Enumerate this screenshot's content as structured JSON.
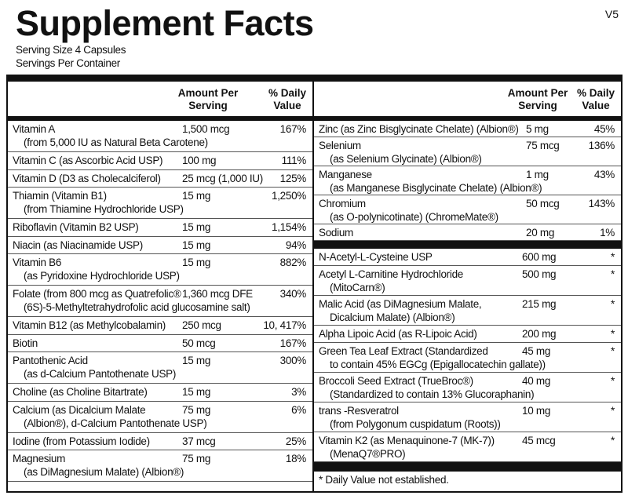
{
  "title": "Supplement Facts",
  "version": "V5",
  "serving_size": "Serving Size  4 Capsules",
  "servings_per_container": "Servings Per Container",
  "header": {
    "amount": "Amount Per",
    "amount2": "Serving",
    "dv": "% Daily",
    "dv2": "Value"
  },
  "left_rows": [
    {
      "name": "Vitamin A",
      "sub": "(from 5,000 IU as Natural Beta Carotene)",
      "amount": "1,500 mcg",
      "dv": "167%"
    },
    {
      "name": "Vitamin C (as Ascorbic Acid USP)",
      "amount": "100 mg",
      "dv": "111%"
    },
    {
      "name": "Vitamin D (D3 as Cholecalciferol)",
      "amount": "25 mcg (1,000 IU)",
      "dv": "125%"
    },
    {
      "name": "Thiamin (Vitamin B1)",
      "sub": "(from Thiamine Hydrochloride USP)",
      "amount": "15 mg",
      "dv": "1,250%"
    },
    {
      "name": "Riboflavin (Vitamin B2 USP)",
      "amount": "15 mg",
      "dv": "1,154%"
    },
    {
      "name": "Niacin (as Niacinamide USP)",
      "amount": "15 mg",
      "dv": "94%"
    },
    {
      "name": "Vitamin B6",
      "sub": "(as Pyridoxine Hydrochloride USP)",
      "amount": "15 mg",
      "dv": "882%"
    },
    {
      "name": "Folate (from 800 mcg as Quatrefolic®",
      "sub": "(6S)-5-Methyltetrahydrofolic acid glucosamine salt)",
      "amount": "1,360 mcg DFE",
      "dv": "340%"
    },
    {
      "name": "Vitamin B12 (as Methylcobalamin)",
      "amount": "250 mcg",
      "dv": "10, 417%"
    },
    {
      "name": "Biotin",
      "amount": "50 mcg",
      "dv": "167%"
    },
    {
      "name": "Pantothenic Acid",
      "sub": "(as d-Calcium Pantothenate USP)",
      "amount": "15 mg",
      "dv": "300%"
    },
    {
      "name": "Choline (as Choline Bitartrate)",
      "amount": "15 mg",
      "dv": "3%"
    },
    {
      "name": "Calcium (as Dicalcium Malate",
      "sub": "(Albion®), d-Calcium Pantothenate USP)",
      "amount": "75 mg",
      "dv": "6%"
    },
    {
      "name": "Iodine (from Potassium Iodide)",
      "amount": "37 mcg",
      "dv": "25%"
    },
    {
      "name": "Magnesium",
      "sub": "(as DiMagnesium Malate) (Albion®)",
      "amount": "75 mg",
      "dv": "18%"
    }
  ],
  "right_rows": [
    {
      "name": "Zinc (as Zinc Bisglycinate Chelate) (Albion®)",
      "amount": "5 mg",
      "dv": "45%"
    },
    {
      "name": "Selenium",
      "sub": "(as Selenium Glycinate) (Albion®)",
      "amount": "75 mcg",
      "dv": "136%"
    },
    {
      "name": "Manganese",
      "sub": "(as Manganese Bisglycinate Chelate) (Albion®)",
      "amount": "1 mg",
      "dv": "43%"
    },
    {
      "name": "Chromium",
      "sub": "(as O-polynicotinate) (ChromeMate®)",
      "amount": "50 mcg",
      "dv": "143%"
    },
    {
      "name": "Sodium",
      "amount": "20 mg",
      "dv": "1%"
    }
  ],
  "right_rows2": [
    {
      "name": "N-Acetyl-L-Cysteine USP",
      "amount": "600 mg",
      "dv": "*"
    },
    {
      "name": "Acetyl L-Carnitine Hydrochloride",
      "sub": "(MitoCarn®)",
      "amount": "500 mg",
      "dv": "*"
    },
    {
      "name": "Malic Acid (as DiMagnesium Malate,",
      "sub": "Dicalcium Malate) (Albion®)",
      "amount": "215 mg",
      "dv": "*"
    },
    {
      "name": "Alpha Lipoic Acid (as R-Lipoic Acid)",
      "amount": "200 mg",
      "dv": "*"
    },
    {
      "name": "Green Tea Leaf Extract (Standardized",
      "sub": "to contain 45% EGCg (Epigallocatechin gallate))",
      "amount": "45 mg",
      "dv": "*"
    },
    {
      "name": "Broccoli Seed Extract (TrueBroc®)",
      "sub": "(Standardized to contain 13% Glucoraphanin)",
      "amount": "40 mg",
      "dv": "*"
    },
    {
      "name": "trans -Resveratrol",
      "sub": "(from Polygonum cuspidatum (Roots))",
      "amount": "10 mg",
      "dv": "*"
    },
    {
      "name": "Vitamin K2 (as Menaquinone-7 (MK-7))",
      "sub": "(MenaQ7®PRO)",
      "amount": "45 mcg",
      "dv": "*"
    }
  ],
  "footnote": "*  Daily Value not established."
}
